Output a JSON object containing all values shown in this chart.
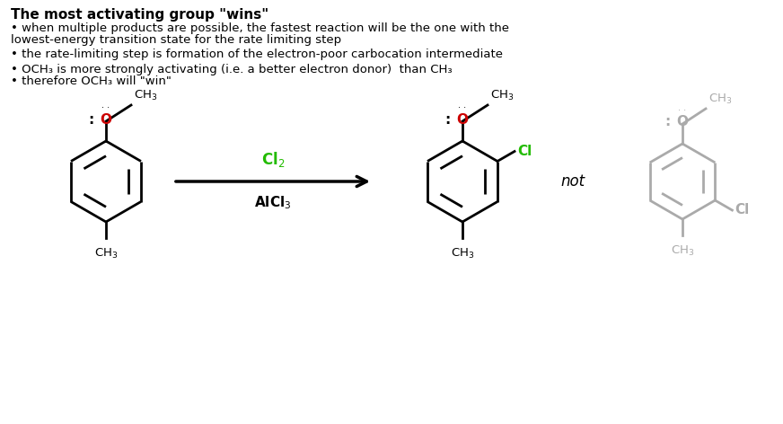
{
  "title": "The most activating group \"wins\"",
  "bullet1": "• when multiple products are possible, the fastest reaction will be the one with the",
  "bullet1b": "lowest-energy transition state for the rate limiting step",
  "bullet2": "• the rate-limiting step is formation of the electron-poor carbocation intermediate",
  "bullet3a": "• OCH₃ is more strongly activating (i.e. a better electron donor)  than CH₃",
  "bullet3b": "• therefore OCH₃ will \"win\"",
  "reagent_top": "Cl₂",
  "reagent_bottom": "AlCl₃",
  "not_text": "not",
  "bg_color": "#ffffff",
  "text_color": "#000000",
  "gray_color": "#aaaaaa",
  "green_color": "#22bb00",
  "red_color": "#cc0000"
}
